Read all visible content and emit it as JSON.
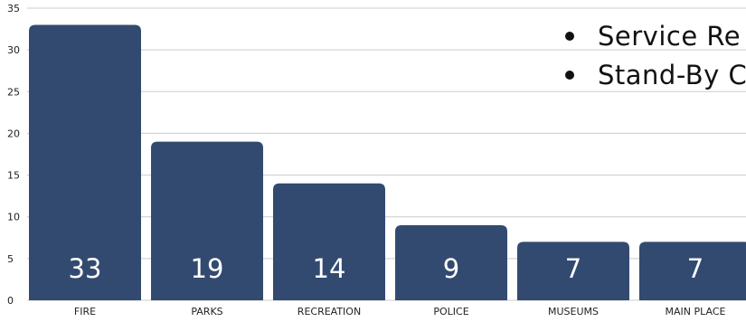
{
  "chart_data": {
    "type": "bar",
    "categories": [
      "FIRE",
      "PARKS",
      "RECREATION",
      "POLICE",
      "MUSEUMS",
      "MAIN PLACE"
    ],
    "values": [
      33,
      19,
      14,
      9,
      7,
      7
    ],
    "data_labels": [
      "33",
      "19",
      "14",
      "9",
      "7",
      "7"
    ],
    "y_ticks": [
      "0",
      "5",
      "10",
      "15",
      "20",
      "25",
      "30",
      "35"
    ],
    "ylim": [
      0,
      35
    ],
    "grid": true,
    "bar_color": "#334a70",
    "title": "",
    "xlabel": "",
    "ylabel": ""
  },
  "legend": {
    "items": [
      "Service Re",
      "Stand-By C"
    ]
  }
}
